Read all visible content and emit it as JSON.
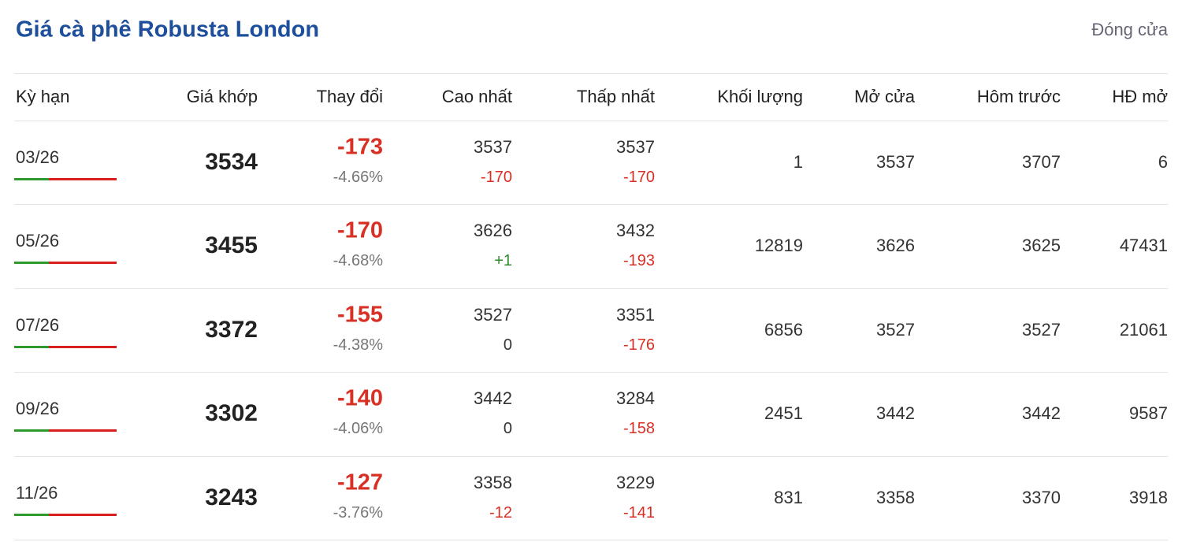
{
  "header": {
    "title": "Giá cà phê Robusta London",
    "status": "Đóng cửa"
  },
  "table": {
    "columns": [
      "Kỳ hạn",
      "Giá khớp",
      "Thay đổi",
      "Cao nhất",
      "Thấp nhất",
      "Khối lượng",
      "Mở cửa",
      "Hôm trước",
      "HĐ mở"
    ],
    "rows": [
      {
        "term": "03/26",
        "price": "3534",
        "change": "-173",
        "change_pct": "-4.66%",
        "high": "3537",
        "high_change": "-170",
        "low": "3537",
        "low_change": "-170",
        "volume": "1",
        "open": "3537",
        "prev_close": "3707",
        "open_interest": "6"
      },
      {
        "term": "05/26",
        "price": "3455",
        "change": "-170",
        "change_pct": "-4.68%",
        "high": "3626",
        "high_change": "+1",
        "low": "3432",
        "low_change": "-193",
        "volume": "12819",
        "open": "3626",
        "prev_close": "3625",
        "open_interest": "47431"
      },
      {
        "term": "07/26",
        "price": "3372",
        "change": "-155",
        "change_pct": "-4.38%",
        "high": "3527",
        "high_change": "0",
        "low": "3351",
        "low_change": "-176",
        "volume": "6856",
        "open": "3527",
        "prev_close": "3527",
        "open_interest": "21061"
      },
      {
        "term": "09/26",
        "price": "3302",
        "change": "-140",
        "change_pct": "-4.06%",
        "high": "3442",
        "high_change": "0",
        "low": "3284",
        "low_change": "-158",
        "volume": "2451",
        "open": "3442",
        "prev_close": "3442",
        "open_interest": "9587"
      },
      {
        "term": "11/26",
        "price": "3243",
        "change": "-127",
        "change_pct": "-3.76%",
        "high": "3358",
        "high_change": "-12",
        "low": "3229",
        "low_change": "-141",
        "volume": "831",
        "open": "3358",
        "prev_close": "3370",
        "open_interest": "3918"
      }
    ]
  }
}
